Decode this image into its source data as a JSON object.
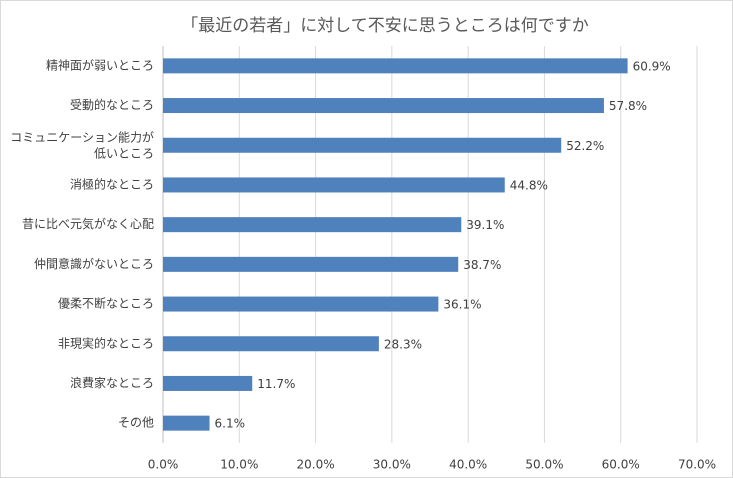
{
  "chart_data": {
    "type": "bar",
    "orientation": "horizontal",
    "title": "「最近の若者」に対して不安に思うところは何ですか",
    "categories": [
      "精神面が弱いところ",
      "受動的なところ",
      "コミュニケーション能力が\n低いところ",
      "消極的なところ",
      "昔に比べ元気がなく心配",
      "仲間意識がないところ",
      "優柔不断なところ",
      "非現実的なところ",
      "浪費家なところ",
      "その他"
    ],
    "values": [
      60.9,
      57.8,
      52.2,
      44.8,
      39.1,
      38.7,
      36.1,
      28.3,
      11.7,
      6.1
    ],
    "value_labels": [
      "60.9%",
      "57.8%",
      "52.2%",
      "44.8%",
      "39.1%",
      "38.7%",
      "36.1%",
      "28.3%",
      "11.7%",
      "6.1%"
    ],
    "color": "#4f81bd",
    "xlim": [
      0,
      70
    ],
    "xticks": [
      {
        "value": 0,
        "label": "0.0%"
      },
      {
        "value": 10,
        "label": "10.0%"
      },
      {
        "value": 20,
        "label": "20.0%"
      },
      {
        "value": 30,
        "label": "30.0%"
      },
      {
        "value": 40,
        "label": "40.0%"
      },
      {
        "value": 50,
        "label": "50.0%"
      },
      {
        "value": 60,
        "label": "60.0%"
      },
      {
        "value": 70,
        "label": "70.0%"
      }
    ],
    "grid": true
  }
}
